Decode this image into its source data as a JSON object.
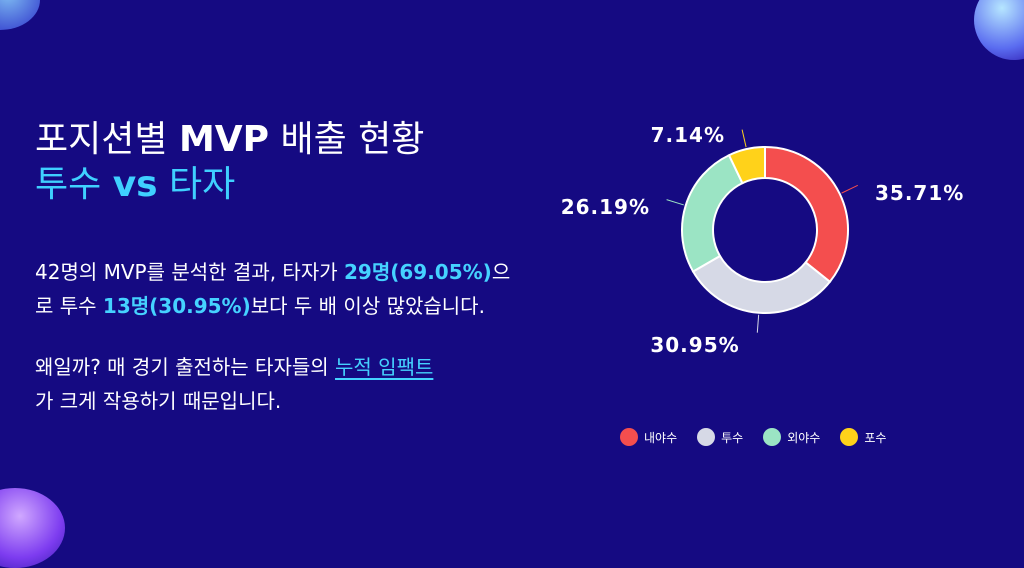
{
  "title": {
    "line1_plain": "포지션별 ",
    "line1_bold": "MVP",
    "line1_rest": " 배출 현황",
    "line2_a": "투수 ",
    "line2_bold": "vs",
    "line2_b": " 타자"
  },
  "para1": {
    "t1": "42명의 MVP를 분석한 결과, 타자가 ",
    "h1": "29명(69.05%)",
    "t2": "으",
    "t3": "로 투수 ",
    "h2": "13명(30.95%)",
    "t4": "보다 두 배 이상 많았습니다."
  },
  "para2": {
    "t1": "왜일까? 매 경기 출전하는 타자들의 ",
    "link": "누적 임팩트",
    "t2": "가 크게 작용하기 때문입니다."
  },
  "chart_data": {
    "type": "pie",
    "categories": [
      "내야수",
      "투수",
      "외야수",
      "포수"
    ],
    "values": [
      35.71,
      30.95,
      26.19,
      7.14
    ],
    "labels": [
      "35.71%",
      "30.95%",
      "26.19%",
      "7.14%"
    ],
    "colors": [
      "#f44e4e",
      "#d6d9e6",
      "#9be4c4",
      "#ffd21a"
    ],
    "legend_position": "bottom"
  }
}
